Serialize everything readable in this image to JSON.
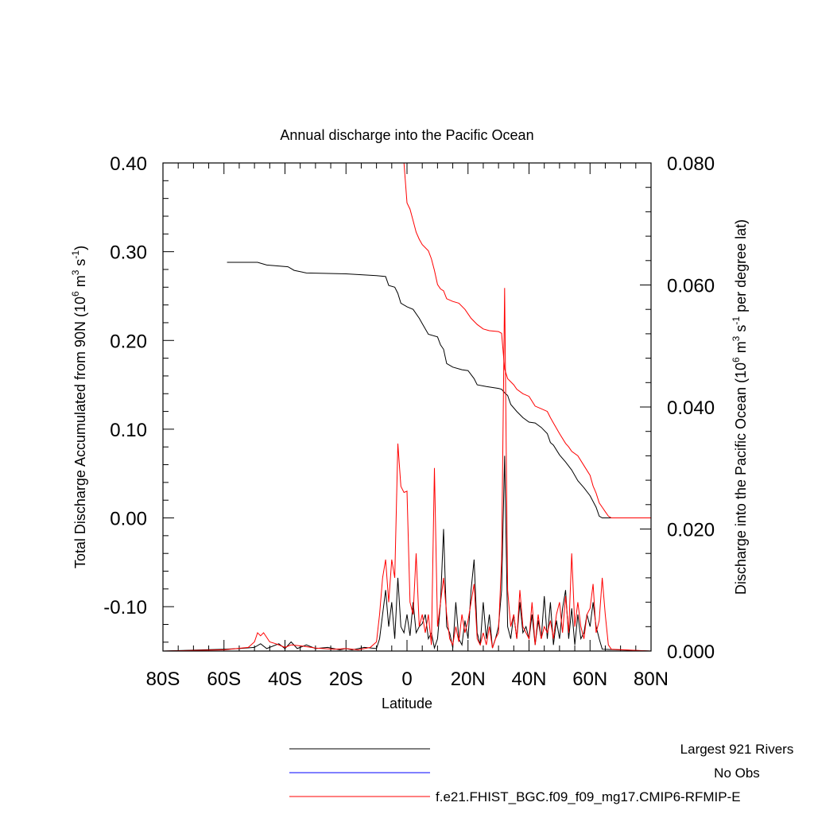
{
  "chart_data": {
    "type": "line",
    "title": "Annual discharge into the Pacific Ocean",
    "xlabel": "Latitude",
    "ylabel_left": "Total Discharge Accumulated from 90N (10",
    "ylabel_left_exp": "6",
    "ylabel_left_mid": " m",
    "ylabel_left_exp2": "3",
    "ylabel_left_mid2": " s",
    "ylabel_left_exp3": "-1",
    "ylabel_left_end": ")",
    "ylabel_right": "Discharge into the Pacific Ocean (10",
    "ylabel_right_exp": "6",
    "ylabel_right_mid": " m",
    "ylabel_right_exp2": "3",
    "ylabel_right_mid2": " s",
    "ylabel_right_exp3": "-1",
    "ylabel_right_end": " per degree lat)",
    "xlim": [
      -80,
      80
    ],
    "ylim_left": [
      -0.15,
      0.4
    ],
    "ylim_right": [
      0.0,
      0.08
    ],
    "x_ticks": [
      -80,
      -60,
      -40,
      -20,
      0,
      20,
      40,
      60,
      80
    ],
    "x_tick_labels": [
      "80S",
      "60S",
      "40S",
      "20S",
      "0",
      "20N",
      "40N",
      "60N",
      "80N"
    ],
    "y_left_ticks": [
      0.4,
      0.3,
      0.2,
      0.1,
      0.0,
      -0.1
    ],
    "y_left_tick_labels": [
      "0.40",
      "0.30",
      "0.20",
      "0.10",
      "0.00",
      "-0.10"
    ],
    "y_right_ticks": [
      0.08,
      0.06,
      0.04,
      0.02,
      0.0
    ],
    "y_right_tick_labels": [
      "0.080",
      "0.060",
      "0.040",
      "0.020",
      "0.000"
    ],
    "series": [
      {
        "name": "Largest 921 Rivers",
        "color": "#000000",
        "accumulated": [
          [
            -59,
            0.288
          ],
          [
            -49,
            0.288
          ],
          [
            -46,
            0.285
          ],
          [
            -39,
            0.283
          ],
          [
            -37,
            0.279
          ],
          [
            -33,
            0.276
          ],
          [
            -20,
            0.275
          ],
          [
            -10,
            0.273
          ],
          [
            -7,
            0.272
          ],
          [
            -6,
            0.262
          ],
          [
            -4,
            0.26
          ],
          [
            -3,
            0.253
          ],
          [
            -2,
            0.242
          ],
          [
            0,
            0.238
          ],
          [
            2,
            0.235
          ],
          [
            4,
            0.225
          ],
          [
            5,
            0.219
          ],
          [
            7,
            0.207
          ],
          [
            10,
            0.204
          ],
          [
            11,
            0.195
          ],
          [
            12,
            0.19
          ],
          [
            13,
            0.174
          ],
          [
            15,
            0.17
          ],
          [
            18,
            0.167
          ],
          [
            20,
            0.166
          ],
          [
            22,
            0.157
          ],
          [
            23,
            0.15
          ],
          [
            26,
            0.148
          ],
          [
            30,
            0.146
          ],
          [
            31,
            0.145
          ],
          [
            32,
            0.141
          ],
          [
            33,
            0.138
          ],
          [
            34,
            0.128
          ],
          [
            36,
            0.12
          ],
          [
            38,
            0.113
          ],
          [
            40,
            0.108
          ],
          [
            42,
            0.107
          ],
          [
            44,
            0.102
          ],
          [
            46,
            0.095
          ],
          [
            47,
            0.085
          ],
          [
            48,
            0.082
          ],
          [
            50,
            0.071
          ],
          [
            52,
            0.063
          ],
          [
            54,
            0.054
          ],
          [
            56,
            0.042
          ],
          [
            58,
            0.034
          ],
          [
            60,
            0.025
          ],
          [
            62,
            0.012
          ],
          [
            63,
            0.002
          ],
          [
            64,
            0.0
          ],
          [
            80,
            0.0
          ]
        ],
        "per_degree": [
          [
            -80,
            0
          ],
          [
            -60,
            0.0003
          ],
          [
            -55,
            0.0004
          ],
          [
            -50,
            0.0006
          ],
          [
            -48,
            0.0012
          ],
          [
            -46,
            0.0004
          ],
          [
            -42,
            0.0012
          ],
          [
            -40,
            0.0004
          ],
          [
            -38,
            0.0015
          ],
          [
            -36,
            0.0004
          ],
          [
            -33,
            0.001
          ],
          [
            -30,
            0.0004
          ],
          [
            -26,
            0.0006
          ],
          [
            -22,
            0.0002
          ],
          [
            -20,
            0.0004
          ],
          [
            -18,
            0.0002
          ],
          [
            -14,
            0.0006
          ],
          [
            -10,
            0.0004
          ],
          [
            -9,
            0.002
          ],
          [
            -8,
            0.006
          ],
          [
            -7,
            0.01
          ],
          [
            -6,
            0.004
          ],
          [
            -5,
            0.008
          ],
          [
            -4,
            0.002
          ],
          [
            -3,
            0.012
          ],
          [
            -2,
            0.004
          ],
          [
            -1,
            0.003
          ],
          [
            0,
            0.006
          ],
          [
            1,
            0.0025
          ],
          [
            2,
            0.008
          ],
          [
            3,
            0.003
          ],
          [
            4,
            0.004
          ],
          [
            5,
            0.0045
          ],
          [
            6,
            0.006
          ],
          [
            7,
            0.002
          ],
          [
            8,
            0.003
          ],
          [
            9,
            0.0005
          ],
          [
            10,
            0.002
          ],
          [
            11,
            0.008
          ],
          [
            12,
            0.02
          ],
          [
            13,
            0.004
          ],
          [
            14,
            0.003
          ],
          [
            15,
            0.0005
          ],
          [
            16,
            0.008
          ],
          [
            17,
            0.002
          ],
          [
            18,
            0.001
          ],
          [
            19,
            0.005
          ],
          [
            20,
            0.002
          ],
          [
            21,
            0.01
          ],
          [
            22,
            0.015
          ],
          [
            23,
            0.003
          ],
          [
            24,
            0.001
          ],
          [
            25,
            0.008
          ],
          [
            26,
            0.002
          ],
          [
            27,
            0.006
          ],
          [
            28,
            0.0005
          ],
          [
            29,
            0.002
          ],
          [
            30,
            0.004
          ],
          [
            31,
            0.01
          ],
          [
            32,
            0.032
          ],
          [
            33,
            0.004
          ],
          [
            34,
            0.002
          ],
          [
            35,
            0.006
          ],
          [
            36,
            0.002
          ],
          [
            37,
            0.008
          ],
          [
            38,
            0.003
          ],
          [
            39,
            0.004
          ],
          [
            40,
            0.002
          ],
          [
            41,
            0.006
          ],
          [
            42,
            0.001
          ],
          [
            43,
            0.005
          ],
          [
            44,
            0.002
          ],
          [
            45,
            0.009
          ],
          [
            46,
            0.002
          ],
          [
            47,
            0.008
          ],
          [
            48,
            0.001
          ],
          [
            49,
            0.005
          ],
          [
            50,
            0.002
          ],
          [
            51,
            0.007
          ],
          [
            52,
            0.01
          ],
          [
            53,
            0.002
          ],
          [
            54,
            0.007
          ],
          [
            55,
            0.001
          ],
          [
            56,
            0.006
          ],
          [
            57,
            0.002
          ],
          [
            58,
            0.003
          ],
          [
            59,
            0.006
          ],
          [
            60,
            0.004
          ],
          [
            61,
            0.008
          ],
          [
            62,
            0.004
          ],
          [
            63,
            0.002
          ],
          [
            64,
            0.0003
          ],
          [
            80,
            0
          ]
        ]
      },
      {
        "name": "No Obs",
        "color": "#0000ff",
        "accumulated": [],
        "per_degree": []
      },
      {
        "name": "f.e21.FHIST_BGC.f09_f09_mg17.CMIP6-RFMIP-E",
        "color": "#ff0000",
        "accumulated": [
          [
            -1,
            0.4
          ],
          [
            0,
            0.355
          ],
          [
            1,
            0.348
          ],
          [
            2,
            0.335
          ],
          [
            3,
            0.322
          ],
          [
            4,
            0.314
          ],
          [
            5,
            0.308
          ],
          [
            7,
            0.301
          ],
          [
            8,
            0.292
          ],
          [
            9,
            0.279
          ],
          [
            10,
            0.263
          ],
          [
            11,
            0.258
          ],
          [
            12,
            0.256
          ],
          [
            13,
            0.247
          ],
          [
            15,
            0.244
          ],
          [
            17,
            0.242
          ],
          [
            19,
            0.235
          ],
          [
            21,
            0.225
          ],
          [
            23,
            0.218
          ],
          [
            25,
            0.213
          ],
          [
            27,
            0.211
          ],
          [
            30,
            0.21
          ],
          [
            31,
            0.208
          ],
          [
            32,
            0.168
          ],
          [
            33,
            0.157
          ],
          [
            35,
            0.15
          ],
          [
            36,
            0.145
          ],
          [
            38,
            0.14
          ],
          [
            40,
            0.137
          ],
          [
            42,
            0.126
          ],
          [
            44,
            0.123
          ],
          [
            46,
            0.12
          ],
          [
            47,
            0.113
          ],
          [
            48,
            0.107
          ],
          [
            50,
            0.095
          ],
          [
            52,
            0.084
          ],
          [
            53,
            0.08
          ],
          [
            54,
            0.075
          ],
          [
            56,
            0.07
          ],
          [
            58,
            0.059
          ],
          [
            60,
            0.048
          ],
          [
            61,
            0.036
          ],
          [
            62,
            0.028
          ],
          [
            63,
            0.017
          ],
          [
            64,
            0.012
          ],
          [
            65,
            0.007
          ],
          [
            66,
            0.002
          ],
          [
            67,
            0.0
          ],
          [
            80,
            0.0
          ]
        ],
        "per_degree": [
          [
            -80,
            0
          ],
          [
            -60,
            0.0002
          ],
          [
            -52,
            0.0006
          ],
          [
            -50,
            0.0015
          ],
          [
            -49,
            0.003
          ],
          [
            -48,
            0.0025
          ],
          [
            -47,
            0.003
          ],
          [
            -45,
            0.0015
          ],
          [
            -43,
            0.0012
          ],
          [
            -40,
            0.0006
          ],
          [
            -38,
            0.001
          ],
          [
            -34,
            0.0008
          ],
          [
            -30,
            0.0005
          ],
          [
            -24,
            0.0003
          ],
          [
            -20,
            0.0004
          ],
          [
            -16,
            0.0002
          ],
          [
            -12,
            0.0006
          ],
          [
            -10,
            0.0015
          ],
          [
            -9,
            0.006
          ],
          [
            -8,
            0.012
          ],
          [
            -7,
            0.015
          ],
          [
            -6,
            0.008
          ],
          [
            -5,
            0.015
          ],
          [
            -4,
            0.012
          ],
          [
            -3,
            0.034
          ],
          [
            -2,
            0.027
          ],
          [
            -1,
            0.026
          ],
          [
            0,
            0.0262
          ],
          [
            1,
            0.008
          ],
          [
            2,
            0.006
          ],
          [
            3,
            0.016
          ],
          [
            4,
            0.004
          ],
          [
            5,
            0.006
          ],
          [
            6,
            0.003
          ],
          [
            7,
            0.006
          ],
          [
            8,
            0.001
          ],
          [
            9,
            0.03
          ],
          [
            10,
            0.004
          ],
          [
            11,
            0.008
          ],
          [
            12,
            0.012
          ],
          [
            13,
            0.006
          ],
          [
            14,
            0.002
          ],
          [
            15,
            0.001
          ],
          [
            16,
            0.004
          ],
          [
            17,
            0.0015
          ],
          [
            18,
            0.006
          ],
          [
            19,
            0.003
          ],
          [
            20,
            0.005
          ],
          [
            21,
            0.008
          ],
          [
            22,
            0.011
          ],
          [
            23,
            0.002
          ],
          [
            24,
            0.001
          ],
          [
            25,
            0.003
          ],
          [
            26,
            0.001
          ],
          [
            27,
            0.004
          ],
          [
            28,
            0.0005
          ],
          [
            29,
            0.002
          ],
          [
            30,
            0.003
          ],
          [
            31,
            0.015
          ],
          [
            32,
            0.0595
          ],
          [
            33,
            0.01
          ],
          [
            34,
            0.004
          ],
          [
            35,
            0.006
          ],
          [
            36,
            0.002
          ],
          [
            37,
            0.01
          ],
          [
            38,
            0.004
          ],
          [
            39,
            0.003
          ],
          [
            40,
            0.002
          ],
          [
            41,
            0.008
          ],
          [
            42,
            0.001
          ],
          [
            43,
            0.006
          ],
          [
            44,
            0.002
          ],
          [
            45,
            0.004
          ],
          [
            46,
            0.003
          ],
          [
            47,
            0.005
          ],
          [
            48,
            0.002
          ],
          [
            49,
            0.006
          ],
          [
            50,
            0.008
          ],
          [
            51,
            0.003
          ],
          [
            52,
            0.009
          ],
          [
            53,
            0.003
          ],
          [
            54,
            0.016
          ],
          [
            55,
            0.004
          ],
          [
            56,
            0.008
          ],
          [
            57,
            0.004
          ],
          [
            58,
            0.002
          ],
          [
            59,
            0.006
          ],
          [
            60,
            0.007
          ],
          [
            61,
            0.011
          ],
          [
            62,
            0.003
          ],
          [
            63,
            0.005
          ],
          [
            64,
            0.012
          ],
          [
            65,
            0.006
          ],
          [
            66,
            0.001
          ],
          [
            67,
            0.0003
          ],
          [
            80,
            0
          ]
        ]
      }
    ],
    "legend_position": "bottom-right"
  }
}
